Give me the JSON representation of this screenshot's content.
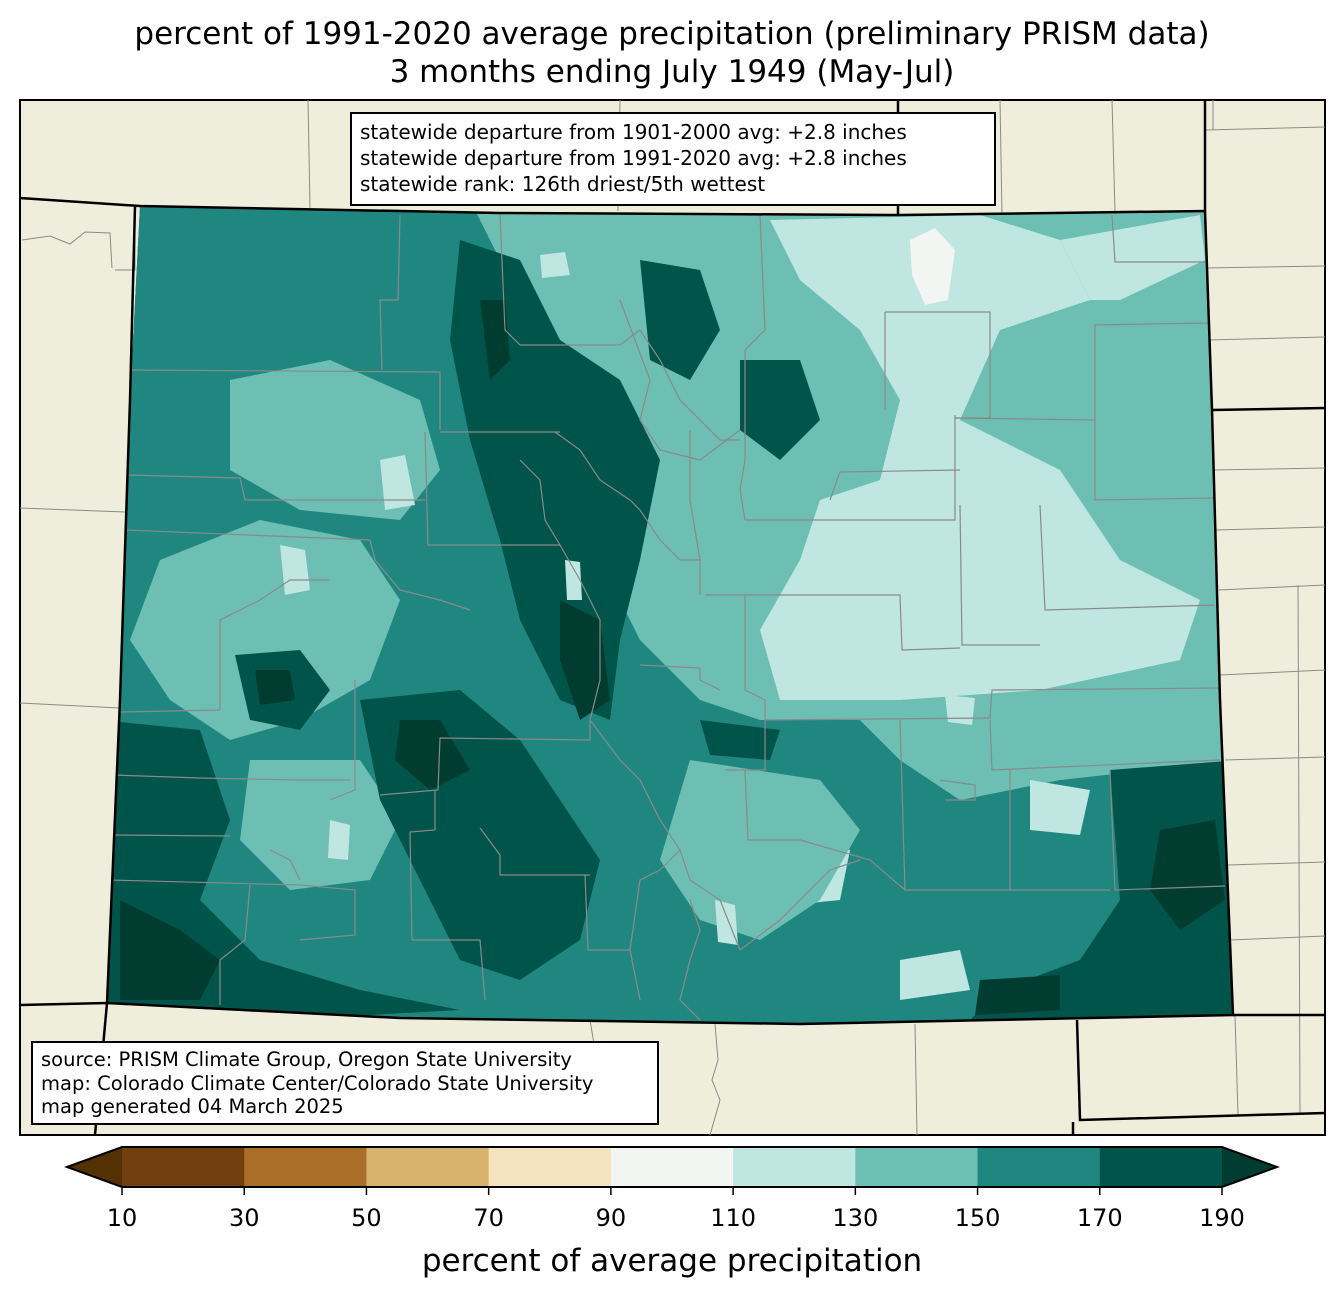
{
  "title": {
    "line1": "percent of 1991-2020 average precipitation (preliminary PRISM data)",
    "line2": "3 months ending July 1949 (May-Jul)"
  },
  "stats": {
    "line1": "statewide departure from 1901-2000 avg: +2.8 inches",
    "line2": "statewide departure from 1991-2020 avg: +2.8 inches",
    "line3": "statewide rank: 126th driest/5th wettest"
  },
  "source": {
    "line1": "source: PRISM Climate Group, Oregon State University",
    "line2": "map: Colorado Climate Center/Colorado State University",
    "line3": "map generated 04 March 2025"
  },
  "colorbar": {
    "label": "percent of average precipitation",
    "ticks": [
      "10",
      "30",
      "50",
      "70",
      "90",
      "110",
      "130",
      "150",
      "170",
      "190"
    ],
    "colors": [
      "#703f0d",
      "#a96e27",
      "#d8b36f",
      "#f3e4bf",
      "#f3f5f3",
      "#bfe6e1",
      "#6cbfb2",
      "#208780",
      "#01544a"
    ],
    "under_color": "#543005",
    "over_color": "#003c30"
  },
  "map_colors": {
    "land": "#efeedc",
    "county_lines": "#8a8a8a",
    "state_lines": "#000000"
  }
}
